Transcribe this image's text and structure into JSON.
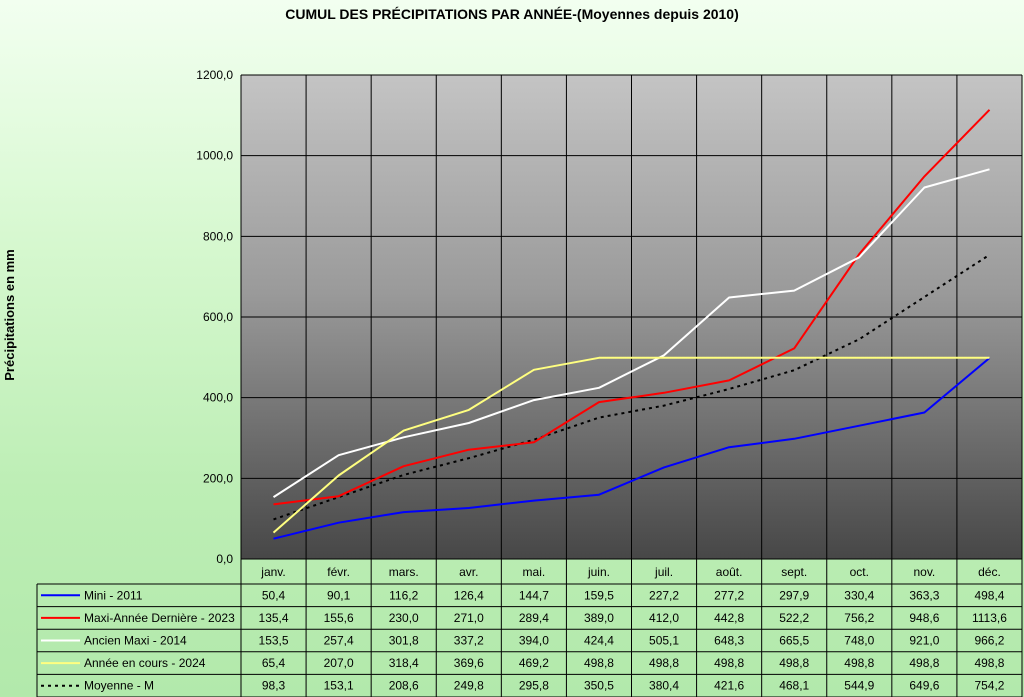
{
  "chart_data": {
    "type": "line",
    "title": "CUMUL DES PRÉCIPITATIONS PAR ANNÉE-(Moyennes depuis 2010)",
    "ylabel": "Précipitations en mm",
    "xlabel": "",
    "ylim": [
      0,
      1200
    ],
    "yticks": [
      "0,0",
      "200,0",
      "400,0",
      "600,0",
      "800,0",
      "1000,0",
      "1200,0"
    ],
    "ytick_values": [
      0,
      200,
      400,
      600,
      800,
      1000,
      1200
    ],
    "grid": true,
    "legend": "data-table-bottom",
    "categories": [
      "janv.",
      "févr.",
      "mars.",
      "avr.",
      "mai.",
      "juin.",
      "juil.",
      "août.",
      "sept.",
      "oct.",
      "nov.",
      "déc."
    ],
    "series": [
      {
        "name": "Mini - 2011",
        "color": "#0000ff",
        "style": "solid",
        "values": [
          50.4,
          90.1,
          116.2,
          126.4,
          144.7,
          159.5,
          227.2,
          277.2,
          297.9,
          330.4,
          363.3,
          498.4
        ],
        "labels": [
          "50,4",
          "90,1",
          "116,2",
          "126,4",
          "144,7",
          "159,5",
          "227,2",
          "277,2",
          "297,9",
          "330,4",
          "363,3",
          "498,4"
        ]
      },
      {
        "name": "Maxi-Année Dernière - 2023",
        "color": "#ff0000",
        "style": "solid",
        "values": [
          135.4,
          155.6,
          230.0,
          271.0,
          289.4,
          389.0,
          412.0,
          442.8,
          522.2,
          756.2,
          948.6,
          1113.6
        ],
        "labels": [
          "135,4",
          "155,6",
          "230,0",
          "271,0",
          "289,4",
          "389,0",
          "412,0",
          "442,8",
          "522,2",
          "756,2",
          "948,6",
          "1113,6"
        ]
      },
      {
        "name": "Ancien Maxi - 2014",
        "color": "#ffffff",
        "style": "solid",
        "values": [
          153.5,
          257.4,
          301.8,
          337.2,
          394.0,
          424.4,
          505.1,
          648.3,
          665.5,
          748.0,
          921.0,
          966.2
        ],
        "labels": [
          "153,5",
          "257,4",
          "301,8",
          "337,2",
          "394,0",
          "424,4",
          "505,1",
          "648,3",
          "665,5",
          "748,0",
          "921,0",
          "966,2"
        ]
      },
      {
        "name": "Année en cours - 2024",
        "color": "#ffff80",
        "style": "solid",
        "values": [
          65.4,
          207.0,
          318.4,
          369.6,
          469.2,
          498.8,
          498.8,
          498.8,
          498.8,
          498.8,
          498.8,
          498.8
        ],
        "labels": [
          "65,4",
          "207,0",
          "318,4",
          "369,6",
          "469,2",
          "498,8",
          "498,8",
          "498,8",
          "498,8",
          "498,8",
          "498,8",
          "498,8"
        ]
      },
      {
        "name": "Moyenne - M",
        "color": "#000000",
        "style": "dotted",
        "values": [
          98.3,
          153.1,
          208.6,
          249.8,
          295.8,
          350.5,
          380.4,
          421.6,
          468.1,
          544.9,
          649.6,
          754.2
        ],
        "labels": [
          "98,3",
          "153,1",
          "208,6",
          "249,8",
          "295,8",
          "350,5",
          "380,4",
          "421,6",
          "468,1",
          "544,9",
          "649,6",
          "754,2"
        ]
      }
    ]
  }
}
